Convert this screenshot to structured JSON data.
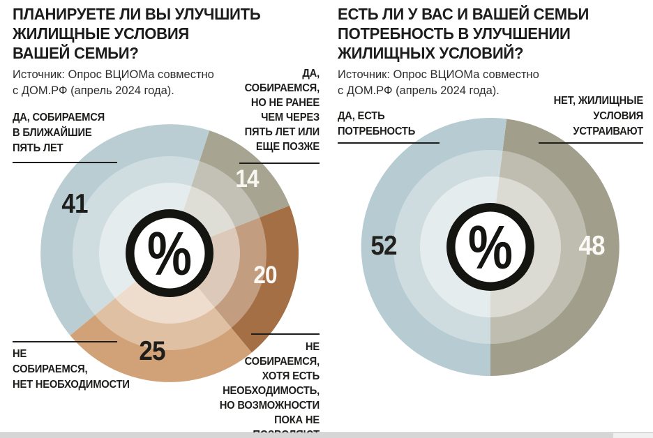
{
  "charts": [
    {
      "title": "ПЛАНИРУЕТЕ ЛИ ВЫ УЛУЧШИТЬ\nЖИЛИЩНЫЕ УСЛОВИЯ\nВАШЕЙ СЕМЬИ?",
      "source": "Источник: Опрос ВЦИОМа совместно\nс ДОМ.РФ (апрель 2024 года).",
      "center_symbol": "%",
      "callouts": {
        "top_left": "ДА, СОБИРАЕМСЯ\nВ БЛИЖАЙШИЕ\nПЯТЬ ЛЕТ",
        "top_right": "ДА,\nСОБИРАЕМСЯ,\nНО НЕ РАНЕЕ\nЧЕМ ЧЕРЕЗ\nПЯТЬ ЛЕТ ИЛИ\nЕЩЕ ПОЗЖЕ",
        "bottom_left": "НЕ\nСОБИРАЕМСЯ,\nНЕТ НЕОБХОДИМОСТИ",
        "bottom_right": "НЕ\nСОБИРАЕМСЯ,\nХОТЯ ЕСТЬ\nНЕОБХОДИМОСТЬ,\nНО ВОЗМОЖНОСТИ\nПОКА НЕ ПОЗВОЛЯЮТ"
      }
    },
    {
      "title": "ЕСТЬ ЛИ У ВАС И ВАШЕЙ СЕМЬИ\nПОТРЕБНОСТЬ В УЛУЧШЕНИИ\nЖИЛИЩНЫХ УСЛОВИЙ?",
      "source": "Источник: Опрос ВЦИОМа совместно\nс ДОМ.РФ (апрель 2024 года).",
      "center_symbol": "%",
      "callouts": {
        "left": "ДА, ЕСТЬ\nПОТРЕБНОСТЬ",
        "right": "НЕТ, ЖИЛИЩНЫЕ\nУСЛОВИЯ\nУСТРАИВАЮТ"
      }
    }
  ],
  "chart_data": [
    {
      "type": "pie",
      "title": "ПЛАНИРУЕТЕ ЛИ ВЫ УЛУЧШИТЬ ЖИЛИЩНЫЕ УСЛОВИЯ ВАШЕЙ СЕМЬИ?",
      "source": "Источник: Опрос ВЦИОМа совместно с ДОМ.РФ (апрель 2024 года).",
      "unit": "%",
      "rotation_deg": 18,
      "center_symbol": "%",
      "segments": [
        {
          "label": "ДА, СОБИРАЕМСЯ, НО НЕ РАНЕЕ ЧЕМ ЧЕРЕЗ ПЯТЬ ЛЕТ ИЛИ ЕЩЕ ПОЗЖЕ",
          "value": 14,
          "color": "#a7a492",
          "value_color": "#f7f6f1"
        },
        {
          "label": "НЕ СОБИРАЕМСЯ, ХОТЯ ЕСТЬ НЕОБХОДИМОСТЬ, НО ВОЗМОЖНОСТИ ПОКА НЕ ПОЗВОЛЯЮТ",
          "value": 20,
          "color": "#a56f45",
          "value_color": "#fdf9f4"
        },
        {
          "label": "НЕ СОБИРАЕМСЯ, НЕТ НЕОБХОДИМОСТИ",
          "value": 25,
          "color": "#d1a278",
          "value_color": "#1d1d1b"
        },
        {
          "label": "ДА, СОБИРАЕМСЯ В БЛИЖАЙШИЕ ПЯТЬ ЛЕТ",
          "value": 41,
          "color": "#b9cdd2",
          "value_color": "#1d1d1b"
        }
      ]
    },
    {
      "type": "pie",
      "title": "ЕСТЬ ЛИ У ВАС И ВАШЕЙ СЕМЬИ ПОТРЕБНОСТЬ В УЛУЧШЕНИИ ЖИЛИЩНЫХ УСЛОВИЙ?",
      "source": "Источник: Опрос ВЦИОМа совместно с ДОМ.РФ (апрель 2024 года).",
      "unit": "%",
      "rotation_deg": 7.2,
      "center_symbol": "%",
      "segments": [
        {
          "label": "НЕТ, ЖИЛИЩНЫЕ УСЛОВИЯ УСТРАИВАЮТ",
          "value": 48,
          "color": "#a19e8b",
          "value_color": "#fbfaf6"
        },
        {
          "label": "ДА, ЕСТЬ ПОТРЕБНОСТЬ",
          "value": 52,
          "color": "#b7ccd2",
          "value_color": "#22201c"
        }
      ]
    }
  ],
  "style": {
    "hub_ring_color": "#141411",
    "hub_fill": "#ffffff",
    "inner_band_opacity_outer": 0.32,
    "inner_band_opacity_inner": 0.45
  }
}
